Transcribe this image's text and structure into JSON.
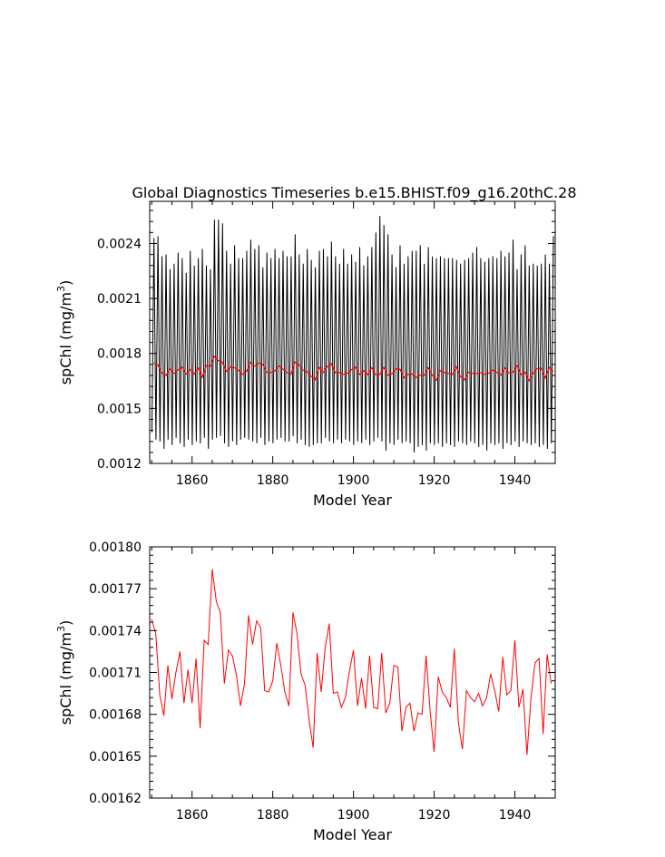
{
  "figure": {
    "title": "Global Diagnostics Timeseries b.e15.BHIST.f09_g16.20thC.28"
  },
  "colors": {
    "monthly_line": "#000000",
    "annual_line": "#ff0000",
    "frame": "#000000"
  },
  "chart_data": [
    {
      "type": "line",
      "title": "Global Diagnostics Timeseries b.e15.BHIST.f09_g16.20thC.28",
      "xlabel": "Model Year",
      "ylabel_base": "spChl (mg/m",
      "ylabel_sup": "3",
      "ylabel_close": ")",
      "xlim": [
        1849.5,
        1950
      ],
      "ylim": [
        0.0012,
        0.00263
      ],
      "xticks": [
        1860,
        1880,
        1900,
        1920,
        1940
      ],
      "xtick_labels": [
        "1860",
        "1880",
        "1900",
        "1920",
        "1940"
      ],
      "yticks": [
        0.0012,
        0.0015,
        0.0018,
        0.0021,
        0.0024
      ],
      "ytick_labels": [
        "0.0012",
        "0.0015",
        "0.0018",
        "0.0021",
        "0.0024"
      ],
      "series": [
        {
          "kind": "monthly",
          "note": "monthly values oscillating between the annual peak and trough",
          "annual_max": [
            0.00243,
            0.00244,
            0.00233,
            0.00234,
            0.00226,
            0.00229,
            0.00235,
            0.00232,
            0.00224,
            0.00236,
            0.00228,
            0.00232,
            0.00237,
            0.00228,
            0.00226,
            0.00253,
            0.00253,
            0.00251,
            0.00236,
            0.00229,
            0.00239,
            0.00232,
            0.00232,
            0.00236,
            0.00242,
            0.00237,
            0.00239,
            0.00227,
            0.00235,
            0.00232,
            0.00237,
            0.00232,
            0.00236,
            0.00233,
            0.00233,
            0.00245,
            0.00234,
            0.00229,
            0.00237,
            0.00231,
            0.00227,
            0.00236,
            0.00237,
            0.00233,
            0.00241,
            0.00233,
            0.00229,
            0.00237,
            0.00229,
            0.00234,
            0.0023,
            0.00238,
            0.00228,
            0.00233,
            0.00238,
            0.00246,
            0.00255,
            0.0025,
            0.00245,
            0.00234,
            0.00227,
            0.00239,
            0.00229,
            0.00233,
            0.00236,
            0.00236,
            0.00239,
            0.00229,
            0.00238,
            0.00233,
            0.00232,
            0.00233,
            0.00232,
            0.00232,
            0.00232,
            0.00231,
            0.00229,
            0.00231,
            0.00232,
            0.00235,
            0.00238,
            0.00232,
            0.0023,
            0.00232,
            0.00233,
            0.00232,
            0.00236,
            0.00233,
            0.00235,
            0.00242,
            0.00226,
            0.00234,
            0.00239,
            0.00228,
            0.00229,
            0.00228,
            0.00229,
            0.00234,
            0.00229,
            0.00244
          ],
          "annual_min": [
            0.00137,
            0.00133,
            0.00132,
            0.00128,
            0.00133,
            0.0013,
            0.00134,
            0.00131,
            0.00129,
            0.00133,
            0.0013,
            0.00132,
            0.00131,
            0.00134,
            0.00128,
            0.00133,
            0.00134,
            0.00135,
            0.00131,
            0.00129,
            0.00132,
            0.0013,
            0.00133,
            0.00134,
            0.00133,
            0.00132,
            0.00131,
            0.00134,
            0.0013,
            0.00132,
            0.00131,
            0.00133,
            0.00134,
            0.00132,
            0.00132,
            0.00135,
            0.00131,
            0.00133,
            0.0013,
            0.00129,
            0.0013,
            0.00131,
            0.00131,
            0.00134,
            0.00132,
            0.00131,
            0.00133,
            0.00131,
            0.00133,
            0.00132,
            0.0013,
            0.00132,
            0.00131,
            0.00133,
            0.0013,
            0.00132,
            0.00134,
            0.00132,
            0.00127,
            0.00131,
            0.0013,
            0.00133,
            0.00131,
            0.00132,
            0.00131,
            0.00126,
            0.00129,
            0.0013,
            0.00127,
            0.00131,
            0.0013,
            0.00131,
            0.00129,
            0.00131,
            0.0013,
            0.00129,
            0.00132,
            0.00131,
            0.0013,
            0.00132,
            0.00131,
            0.00129,
            0.0013,
            0.00127,
            0.00131,
            0.0013,
            0.00131,
            0.00128,
            0.00131,
            0.0013,
            0.00132,
            0.00129,
            0.00132,
            0.00131,
            0.0013,
            0.00131,
            0.00129,
            0.0013,
            0.00128,
            0.00131
          ]
        },
        {
          "kind": "annual",
          "values_ref": "annual_mean"
        }
      ]
    },
    {
      "type": "line",
      "xlabel": "Model Year",
      "ylabel_base": "spChl (mg/m",
      "ylabel_sup": "3",
      "ylabel_close": ")",
      "xlim": [
        1849.5,
        1950
      ],
      "ylim": [
        0.00162,
        0.0018
      ],
      "xticks": [
        1860,
        1880,
        1900,
        1920,
        1940
      ],
      "xtick_labels": [
        "1860",
        "1880",
        "1900",
        "1920",
        "1940"
      ],
      "yticks": [
        0.00162,
        0.00165,
        0.00168,
        0.00171,
        0.00174,
        0.00177,
        0.0018
      ],
      "ytick_labels": [
        "0.00162",
        "0.00165",
        "0.00168",
        "0.00171",
        "0.00174",
        "0.00177",
        "0.00180"
      ],
      "series": [
        {
          "kind": "annual",
          "x_start": 1850,
          "values": [
            0.001748,
            0.001738,
            0.001694,
            0.001679,
            0.001715,
            0.001691,
            0.00171,
            0.001725,
            0.001688,
            0.001712,
            0.001688,
            0.00172,
            0.00167,
            0.001733,
            0.00173,
            0.001784,
            0.001761,
            0.001753,
            0.001702,
            0.001726,
            0.001722,
            0.001708,
            0.001686,
            0.001702,
            0.001751,
            0.00173,
            0.001747,
            0.001742,
            0.001697,
            0.001696,
            0.001704,
            0.001731,
            0.001715,
            0.001696,
            0.001686,
            0.001753,
            0.001738,
            0.001709,
            0.001701,
            0.001676,
            0.001656,
            0.001724,
            0.001696,
            0.001728,
            0.001745,
            0.001695,
            0.001696,
            0.001685,
            0.001692,
            0.001711,
            0.001726,
            0.001686,
            0.001706,
            0.001684,
            0.001722,
            0.001685,
            0.001684,
            0.001724,
            0.001681,
            0.001688,
            0.001715,
            0.001714,
            0.001668,
            0.001685,
            0.001688,
            0.001668,
            0.001681,
            0.00168,
            0.001722,
            0.001682,
            0.001653,
            0.001707,
            0.001696,
            0.001692,
            0.001685,
            0.001727,
            0.001674,
            0.001655,
            0.001697,
            0.001692,
            0.001689,
            0.001695,
            0.001686,
            0.001692,
            0.001709,
            0.001697,
            0.001682,
            0.001721,
            0.001694,
            0.001697,
            0.001733,
            0.001685,
            0.001698,
            0.001651,
            0.001692,
            0.001717,
            0.00172,
            0.001666,
            0.001723,
            0.001702
          ]
        }
      ]
    }
  ]
}
